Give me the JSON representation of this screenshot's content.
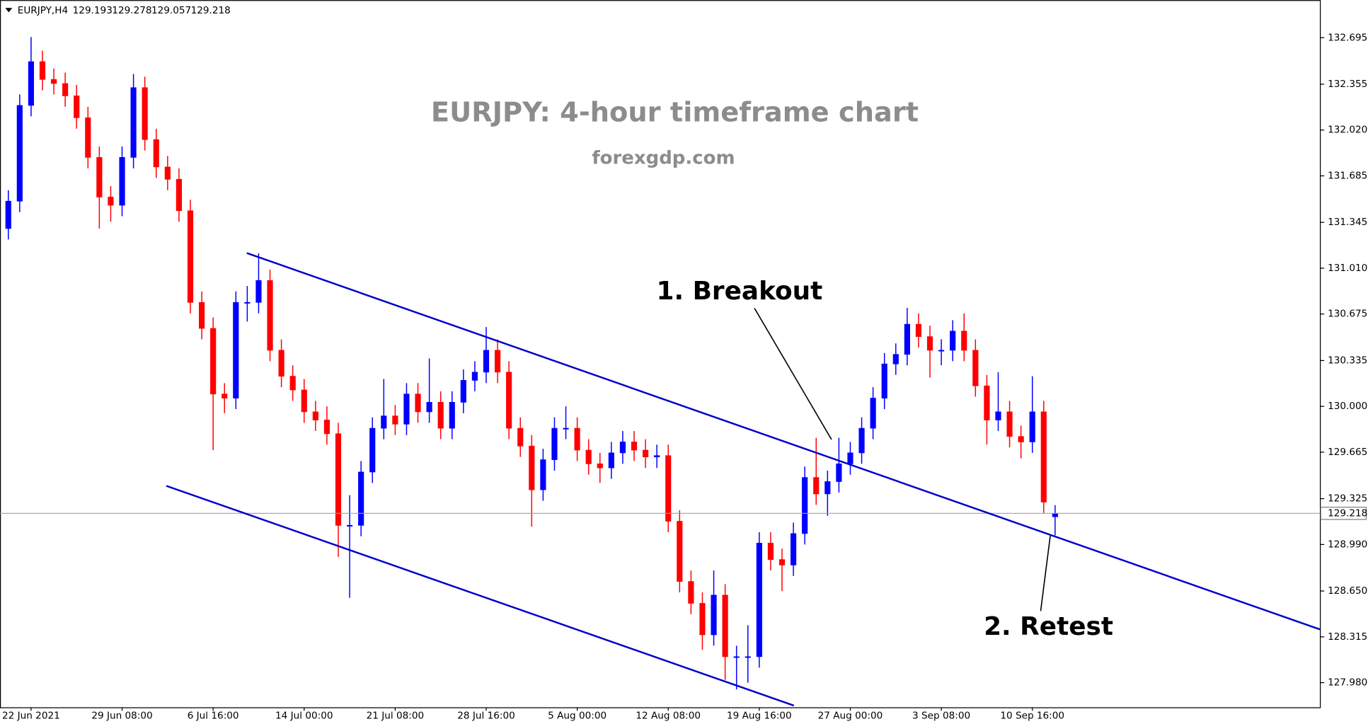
{
  "chart_data": {
    "type": "candlestick",
    "title": "EURJPY: 4-hour timeframe chart",
    "subtitle": "forexgdp.com",
    "symbol": "EURJPY,H4",
    "annotations": [
      "1. Breakout",
      "2. Retest"
    ],
    "categories": [
      null,
      null,
      "22 Jun 2021",
      null,
      null,
      null,
      null,
      null,
      null,
      null,
      "29 Jun 08:00",
      null,
      null,
      null,
      null,
      null,
      null,
      null,
      "6 Jul 16:00",
      null,
      null,
      null,
      null,
      null,
      null,
      null,
      "14 Jul 00:00",
      null,
      null,
      null,
      null,
      null,
      null,
      null,
      "21 Jul 08:00",
      null,
      null,
      null,
      null,
      null,
      null,
      null,
      "28 Jul 16:00",
      null,
      null,
      null,
      null,
      null,
      null,
      null,
      "5 Aug 00:00",
      null,
      null,
      null,
      null,
      null,
      null,
      null,
      "12 Aug 08:00",
      null,
      null,
      null,
      null,
      null,
      null,
      null,
      "19 Aug 16:00",
      null,
      null,
      null,
      null,
      null,
      null,
      null,
      "27 Aug 00:00",
      null,
      null,
      null,
      null,
      null,
      null,
      null,
      "3 Sep 08:00",
      null,
      null,
      null,
      null,
      null,
      null,
      null,
      "10 Sep 16:00",
      null,
      null
    ],
    "open": [
      131.3,
      131.5,
      132.2,
      132.52,
      132.39,
      132.36,
      132.27,
      132.11,
      131.82,
      131.53,
      131.47,
      131.82,
      132.33,
      131.95,
      131.75,
      131.66,
      131.43,
      130.76,
      130.57,
      130.09,
      130.06,
      130.76,
      130.76,
      130.92,
      130.41,
      130.22,
      130.12,
      129.96,
      129.9,
      129.8,
      129.13,
      129.13,
      129.52,
      129.84,
      129.93,
      129.87,
      130.09,
      129.96,
      130.03,
      129.84,
      130.03,
      130.19,
      130.25,
      130.41,
      130.25,
      129.84,
      129.71,
      129.39,
      129.61,
      129.84,
      129.84,
      129.68,
      129.58,
      129.55,
      129.66,
      129.74,
      129.68,
      129.63,
      129.64,
      129.16,
      128.72,
      128.56,
      128.33,
      128.62,
      128.17,
      128.17,
      128.17,
      129.0,
      128.88,
      128.84,
      129.07,
      129.48,
      129.36,
      129.45,
      129.58,
      129.66,
      129.84,
      130.06,
      130.31,
      130.38,
      130.6,
      130.51,
      130.41,
      130.41,
      130.55,
      130.41,
      130.15,
      129.9,
      129.96,
      129.78,
      129.74,
      129.96,
      129.193
    ],
    "high": [
      131.58,
      132.28,
      132.7,
      132.6,
      132.47,
      132.44,
      132.35,
      132.19,
      131.9,
      131.61,
      131.9,
      132.43,
      132.41,
      132.03,
      131.83,
      131.74,
      131.51,
      130.84,
      130.65,
      130.17,
      130.84,
      130.88,
      131.12,
      131.0,
      130.49,
      130.3,
      130.2,
      130.04,
      130.0,
      129.88,
      129.35,
      129.6,
      129.92,
      130.2,
      130.01,
      130.17,
      130.17,
      130.35,
      130.11,
      130.11,
      130.27,
      130.33,
      130.58,
      130.49,
      130.33,
      129.92,
      129.79,
      129.69,
      129.92,
      130.0,
      129.92,
      129.76,
      129.66,
      129.74,
      129.82,
      129.82,
      129.76,
      129.72,
      129.72,
      129.24,
      128.8,
      128.64,
      128.8,
      128.7,
      128.25,
      128.4,
      129.08,
      129.08,
      128.96,
      129.15,
      129.56,
      129.77,
      129.53,
      129.77,
      129.74,
      129.92,
      130.14,
      130.39,
      130.46,
      130.72,
      130.68,
      130.59,
      130.49,
      130.63,
      130.68,
      130.49,
      130.23,
      130.25,
      130.04,
      129.86,
      130.22,
      130.04,
      129.278
    ],
    "low": [
      131.22,
      131.42,
      132.12,
      132.31,
      132.28,
      132.19,
      132.03,
      131.74,
      131.3,
      131.35,
      131.39,
      131.74,
      131.87,
      131.67,
      131.58,
      131.35,
      130.68,
      130.49,
      129.68,
      129.95,
      129.98,
      130.62,
      130.68,
      130.33,
      130.14,
      130.04,
      129.88,
      129.82,
      129.72,
      128.9,
      128.6,
      129.05,
      129.44,
      129.76,
      129.79,
      129.79,
      129.88,
      129.88,
      129.76,
      129.76,
      129.95,
      130.11,
      130.17,
      130.17,
      129.76,
      129.63,
      129.12,
      129.31,
      129.53,
      129.76,
      129.6,
      129.5,
      129.44,
      129.47,
      129.58,
      129.6,
      129.55,
      129.55,
      129.08,
      128.64,
      128.48,
      128.22,
      128.25,
      128.0,
      127.93,
      127.98,
      128.09,
      128.8,
      128.65,
      128.76,
      128.99,
      129.28,
      129.2,
      129.37,
      129.5,
      129.58,
      129.76,
      129.98,
      130.23,
      130.3,
      130.43,
      130.21,
      130.3,
      130.33,
      130.33,
      130.07,
      129.72,
      129.82,
      129.7,
      129.62,
      129.66,
      129.22,
      129.057
    ],
    "close": [
      131.5,
      132.2,
      132.52,
      132.39,
      132.36,
      132.27,
      132.11,
      131.82,
      131.53,
      131.47,
      131.82,
      132.33,
      131.95,
      131.75,
      131.66,
      131.43,
      130.76,
      130.57,
      130.09,
      130.06,
      130.76,
      130.76,
      130.92,
      130.41,
      130.22,
      130.12,
      129.96,
      129.9,
      129.8,
      129.13,
      129.13,
      129.52,
      129.84,
      129.93,
      129.87,
      130.09,
      129.96,
      130.03,
      129.84,
      130.03,
      130.19,
      130.25,
      130.41,
      130.25,
      129.84,
      129.71,
      129.39,
      129.61,
      129.84,
      129.84,
      129.68,
      129.58,
      129.55,
      129.66,
      129.74,
      129.68,
      129.63,
      129.64,
      129.16,
      128.72,
      128.56,
      128.33,
      128.62,
      128.17,
      128.17,
      128.17,
      129.0,
      128.88,
      128.84,
      129.07,
      129.48,
      129.36,
      129.45,
      129.58,
      129.66,
      129.84,
      130.06,
      130.31,
      130.38,
      130.6,
      130.51,
      130.41,
      130.41,
      130.55,
      130.41,
      130.15,
      129.9,
      129.96,
      129.78,
      129.74,
      129.96,
      129.3,
      129.218
    ],
    "ylim": [
      127.8,
      132.97
    ],
    "yticks": [
      132.695,
      132.355,
      {
        "value": 132.02,
        "label": "132.020"
      },
      131.685,
      131.345,
      {
        "value": 131.01,
        "label": "131.010"
      },
      130.675,
      130.335,
      {
        "value": 130,
        "label": "130.000"
      },
      129.665,
      129.325,
      {
        "value": 128.99,
        "label": "128.990"
      },
      {
        "value": 128.65,
        "label": "128.650"
      },
      128.315,
      {
        "value": 127.98,
        "label": "127.980"
      }
    ],
    "colors": {
      "up": "#0000ff",
      "down": "#ff0000",
      "channel": "#0000cc"
    }
  }
}
